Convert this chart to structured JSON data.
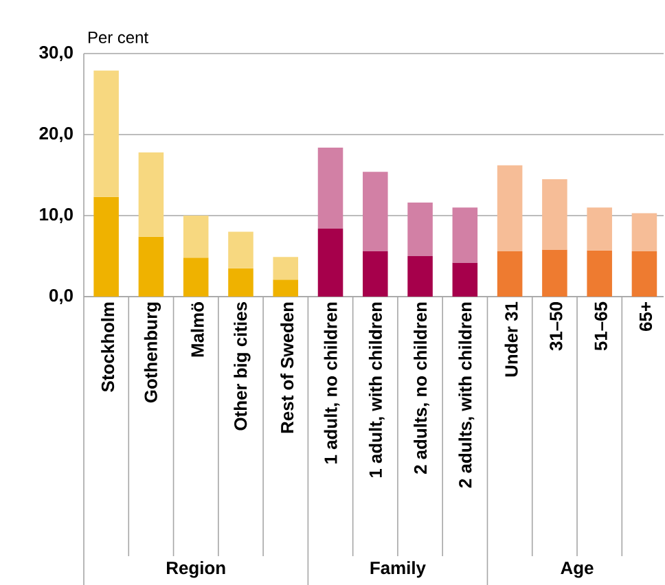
{
  "chart_data": {
    "type": "bar",
    "stacked": true,
    "ylabel": "Per cent",
    "categories": [
      "Stockholm",
      "Gothenburg",
      "Malmö",
      "Other big cities",
      "Rest of Sweden",
      "1 adult, no children",
      "1 adult, with children",
      "2 adults, no children",
      "2 adults, with children",
      "Under 31",
      "31–50",
      "51–65",
      "65+"
    ],
    "series": [
      {
        "values": [
          12.3,
          7.4,
          4.8,
          3.5,
          2.1,
          8.4,
          5.6,
          5.0,
          4.2,
          5.6,
          5.8,
          5.7,
          5.6
        ],
        "colors": [
          "#efb200",
          "#efb200",
          "#efb200",
          "#efb200",
          "#efb200",
          "#a6004b",
          "#a6004b",
          "#a6004b",
          "#a6004b",
          "#ee7b30",
          "#ee7b30",
          "#ee7b30",
          "#ee7b30"
        ]
      },
      {
        "values": [
          15.6,
          10.4,
          5.2,
          4.5,
          2.8,
          10.0,
          9.8,
          6.6,
          6.8,
          10.6,
          8.7,
          5.3,
          4.7
        ],
        "colors": [
          "#f7d880",
          "#f7d880",
          "#f7d880",
          "#f7d880",
          "#f7d880",
          "#d280a5",
          "#d280a5",
          "#d280a5",
          "#d280a5",
          "#f6bd97",
          "#f6bd97",
          "#f6bd97",
          "#f6bd97"
        ]
      }
    ],
    "ylim": [
      0,
      30
    ],
    "yticks": [
      {
        "value": 0,
        "label": "0,0"
      },
      {
        "value": 10,
        "label": "10,0"
      },
      {
        "value": 20,
        "label": "20,0"
      },
      {
        "value": 30,
        "label": "30,0"
      }
    ],
    "grid": "y",
    "annotations": [
      "Region",
      "Family",
      "Age"
    ]
  }
}
